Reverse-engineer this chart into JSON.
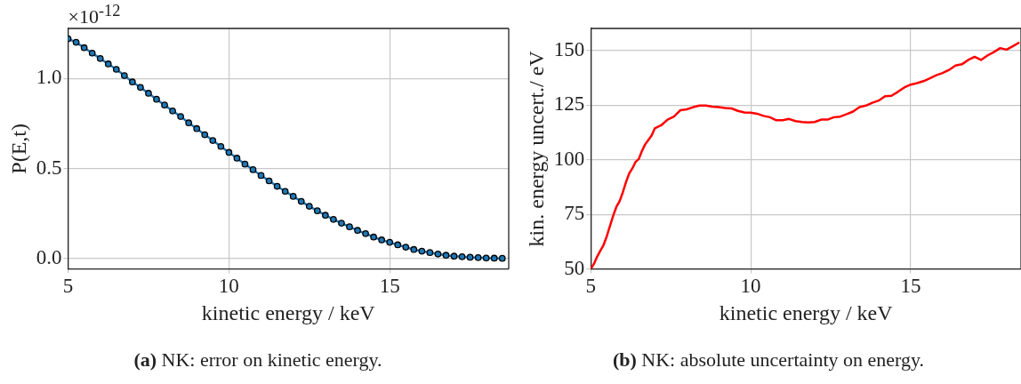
{
  "chart_data": [
    {
      "type": "line",
      "xlabel": "kinetic energy / keV",
      "ylabel": "P(E,t)",
      "annotations": [
        "×10$^{-12}$",
        "(a) NK: error on kinetic energy."
      ],
      "xlim": [
        5,
        18.7
      ],
      "xticks": [
        5,
        10,
        15
      ],
      "ylim": [
        -0.058,
        1.277
      ],
      "yticks": [
        {
          "value": 0,
          "label": "0.0"
        },
        {
          "value": 0.5,
          "label": "0.5"
        },
        {
          "value": 1,
          "label": "1.0"
        }
      ],
      "grid": true,
      "legend": false,
      "marker": "circle",
      "series": [
        {
          "color": "#1f77b4",
          "x": [
            5,
            5.25,
            5.5,
            5.75,
            6,
            6.25,
            6.5,
            6.75,
            7,
            7.25,
            7.5,
            7.75,
            8,
            8.25,
            8.5,
            8.75,
            9,
            9.25,
            9.5,
            9.75,
            10,
            10.25,
            10.5,
            10.75,
            11,
            11.25,
            11.5,
            11.75,
            12,
            12.25,
            12.5,
            12.75,
            13,
            13.25,
            13.5,
            13.75,
            14,
            14.25,
            14.5,
            14.75,
            15,
            15.25,
            15.5,
            15.75,
            16,
            16.25,
            16.5,
            16.75,
            17,
            17.25,
            17.5,
            17.75,
            18,
            18.25,
            18.5
          ],
          "values": [
            1.22,
            1.2,
            1.17,
            1.14,
            1.11,
            1.08,
            1.05,
            1.015,
            0.98,
            0.95,
            0.917,
            0.884,
            0.852,
            0.819,
            0.788,
            0.753,
            0.721,
            0.687,
            0.655,
            0.622,
            0.589,
            0.557,
            0.524,
            0.493,
            0.461,
            0.431,
            0.401,
            0.373,
            0.345,
            0.317,
            0.29,
            0.265,
            0.24,
            0.217,
            0.196,
            0.176,
            0.156,
            0.138,
            0.119,
            0.103,
            0.09,
            0.076,
            0.063,
            0.05,
            0.041,
            0.033,
            0.025,
            0.018,
            0.013,
            0.01,
            0.007,
            0.005,
            0.003,
            0.002,
            0.001
          ]
        }
      ]
    },
    {
      "type": "line",
      "xlabel": "kinetic energy / keV",
      "ylabel": "kin. energy uncert./ eV",
      "annotations": [
        "(b) NK: absolute uncertainty on energy."
      ],
      "xlim": [
        5,
        18.45
      ],
      "xticks": [
        5,
        10,
        15
      ],
      "ylim": [
        50,
        160
      ],
      "yticks": [
        50,
        75,
        100,
        125,
        150
      ],
      "grid": true,
      "legend": false,
      "marker": "none",
      "series": [
        {
          "color": "#ff0000",
          "x": [
            5,
            5.1,
            5.2,
            5.3,
            5.4,
            5.5,
            5.6,
            5.7,
            5.8,
            5.9,
            6,
            6.1,
            6.2,
            6.3,
            6.4,
            6.5,
            6.6,
            6.7,
            6.8,
            6.9,
            7,
            7.2,
            7.4,
            7.6,
            7.8,
            8,
            8.2,
            8.4,
            8.6,
            8.8,
            9,
            9.2,
            9.4,
            9.6,
            9.8,
            10,
            10.2,
            10.4,
            10.6,
            10.8,
            11,
            11.2,
            11.4,
            11.6,
            11.8,
            12,
            12.2,
            12.4,
            12.6,
            12.8,
            13,
            13.2,
            13.4,
            13.6,
            13.8,
            14,
            14.2,
            14.4,
            14.6,
            14.8,
            15,
            15.2,
            15.4,
            15.6,
            15.8,
            16,
            16.2,
            16.4,
            16.6,
            16.8,
            17,
            17.2,
            17.4,
            17.6,
            17.8,
            18,
            18.2,
            18.4
          ],
          "values": [
            50,
            52.4,
            55.7,
            58.4,
            61,
            65,
            69.7,
            74.4,
            78.4,
            81,
            85,
            89.7,
            93.7,
            96,
            99,
            100.3,
            104,
            107,
            109,
            111,
            114.3,
            115.7,
            118.3,
            119.7,
            122.6,
            123,
            124,
            124.7,
            124.7,
            124.2,
            124,
            123.6,
            123.4,
            122.3,
            121.6,
            121.5,
            121,
            120,
            119.4,
            118,
            118,
            118.6,
            117.6,
            117.2,
            117,
            117.2,
            118.3,
            118.3,
            119.4,
            119.7,
            120.8,
            122,
            124,
            124.7,
            126,
            127,
            129,
            129.2,
            131,
            133,
            134.3,
            135,
            135.9,
            137.2,
            138.6,
            139.6,
            141,
            143,
            143.6,
            145.6,
            147,
            145.6,
            147.6,
            149.2,
            151,
            150.3,
            151.9,
            153.6
          ]
        }
      ]
    }
  ]
}
